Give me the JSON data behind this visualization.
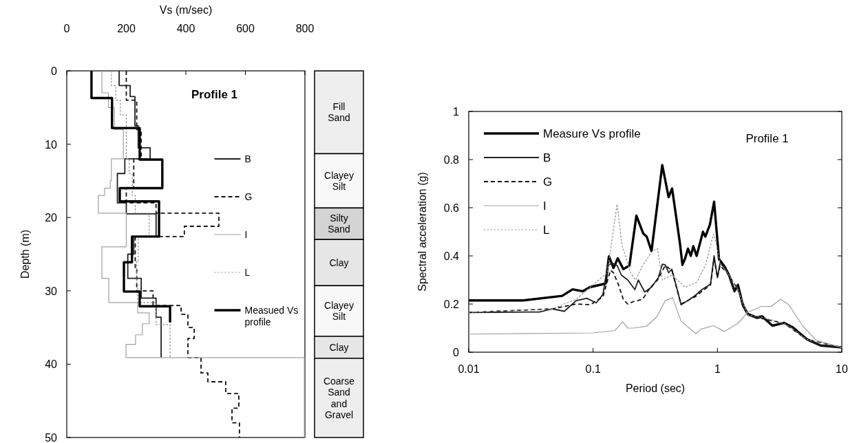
{
  "chart_data": [
    {
      "type": "line",
      "title": "Profile 1",
      "xlabel": "Vs (m/sec)",
      "ylabel": "Depth (m)",
      "xlim": [
        0,
        800
      ],
      "xticks": [
        0,
        200,
        400,
        600,
        800
      ],
      "ylim": [
        50,
        0
      ],
      "yticks": [
        0,
        10,
        20,
        30,
        40,
        50
      ],
      "legend": "right",
      "grid": false,
      "series": [
        {
          "name": "B",
          "color": "#202020",
          "line_style": "solid",
          "x": [
            176,
            176,
            213,
            213,
            229,
            229,
            240,
            240,
            280,
            280,
            195,
            195,
            170,
            170,
            200,
            200,
            300,
            300,
            225,
            225,
            205,
            205,
            250,
            250,
            300,
            300,
            317,
            317
          ],
          "values": [
            0,
            2,
            2,
            3.5,
            3.5,
            7.5,
            7.5,
            10.5,
            10.5,
            12,
            12,
            14,
            14,
            18,
            18,
            19.5,
            19.5,
            22.6,
            22.6,
            25,
            25,
            28.3,
            28.3,
            31,
            31,
            33.6,
            33.6,
            39.1
          ]
        },
        {
          "name": "G",
          "color": "#101010",
          "line_style": "dashed",
          "x": [
            200,
            200,
            235,
            235,
            250,
            250,
            225,
            225,
            200,
            200,
            300,
            300,
            511,
            511,
            395,
            395,
            230,
            230,
            235,
            235,
            290,
            290,
            384,
            384,
            407,
            407,
            428,
            428,
            407,
            407,
            451,
            451,
            474,
            474,
            534,
            534,
            578,
            578,
            555,
            555,
            580,
            580
          ],
          "values": [
            0,
            4,
            4,
            8,
            8,
            12,
            12,
            16,
            16,
            18,
            18,
            19.4,
            19.4,
            21.2,
            21.2,
            22.6,
            22.6,
            27,
            27,
            30,
            30,
            32,
            32,
            33.2,
            33.2,
            35,
            35,
            36.5,
            36.5,
            39.1,
            39.1,
            41.2,
            41.2,
            42.4,
            42.4,
            44,
            44,
            46,
            46,
            48,
            48,
            50
          ]
        },
        {
          "name": "I",
          "color": "#a0a0a0",
          "line_style": "solid",
          "x": [
            118,
            118,
            140,
            140,
            160,
            160,
            190,
            190,
            150,
            150,
            146,
            146,
            127,
            127,
            106,
            106,
            200,
            200,
            118,
            118,
            141,
            141,
            238,
            238,
            277,
            277,
            254,
            254,
            231,
            231,
            199,
            199,
            798,
            798
          ],
          "values": [
            0,
            3,
            3,
            5,
            5,
            8,
            8,
            12,
            12,
            15,
            15,
            16,
            16,
            17,
            17,
            19.4,
            19.4,
            24,
            24,
            28.3,
            28.3,
            31.6,
            31.6,
            33,
            33,
            34.5,
            34.5,
            36,
            36,
            37.3,
            37.3,
            39.1,
            39.1,
            50
          ]
        },
        {
          "name": "L",
          "color": "#909090",
          "line_style": "dotted",
          "x": [
            150,
            150,
            165,
            165,
            180,
            180,
            200,
            200,
            210,
            210,
            220,
            220,
            230,
            230,
            277,
            277,
            240,
            240,
            235,
            235,
            238,
            238,
            300,
            300,
            347,
            347
          ],
          "values": [
            0,
            2,
            2,
            4,
            4,
            6,
            6,
            12,
            12,
            14,
            14,
            17,
            17,
            19.4,
            19.4,
            22.6,
            22.6,
            26,
            26,
            29,
            29,
            31.6,
            31.6,
            34.6,
            34.6,
            39.1
          ]
        },
        {
          "name": "Measued Vs profile",
          "color": "#000000",
          "line_style": "solid",
          "x": [
            83,
            83,
            152,
            152,
            245,
            245,
            321,
            321,
            178,
            178,
            310,
            310,
            219,
            219,
            192,
            192,
            245,
            245,
            347,
            347
          ],
          "values": [
            0,
            3.7,
            3.7,
            7.8,
            7.8,
            12.1,
            12.1,
            16,
            16,
            17.8,
            17.8,
            22.6,
            22.6,
            26.1,
            26.1,
            30.1,
            30.1,
            32.1,
            32.1,
            34.3
          ]
        }
      ]
    },
    {
      "type": "bar",
      "stacked": true,
      "categories": [
        null
      ],
      "ylim": [
        50,
        0
      ],
      "series": [
        {
          "name": "Fill Sand",
          "color": "#eeeeee",
          "values": [
            11.3
          ]
        },
        {
          "name": "Clayey Silt",
          "color": "#f8f8f8",
          "values": [
            7.4
          ]
        },
        {
          "name": "Silty Sand",
          "color": "#d4d4d4",
          "values": [
            4.3
          ]
        },
        {
          "name": "Clay",
          "color": "#e6e6e6",
          "values": [
            6.3
          ]
        },
        {
          "name": "Clayey Silt",
          "color": "#f8f8f8",
          "values": [
            6.9
          ]
        },
        {
          "name": "Clay",
          "color": "#e6e6e6",
          "values": [
            3.0
          ]
        },
        {
          "name": "Coarse Sand and Gravel",
          "color": "#eeeeee",
          "values": [
            10.8
          ]
        }
      ]
    },
    {
      "type": "line",
      "title": "Profile 1",
      "xlabel": "Period (sec)",
      "ylabel": "Spectral acceleration (g)",
      "log": "x",
      "xlim": [
        0.01,
        10
      ],
      "xticks": [
        0.01,
        0.1,
        1,
        10
      ],
      "ylim": [
        0,
        1
      ],
      "yticks": [
        0,
        0.2,
        0.4,
        0.6,
        0.8,
        1
      ],
      "legend": "top left",
      "grid": false,
      "series": [
        {
          "name": "Measure Vs profile",
          "color": "#000000",
          "line_style": "solid",
          "x": [
            0.01,
            0.0273,
            0.0564,
            0.0684,
            0.0825,
            0.094,
            0.126,
            0.134,
            0.146,
            0.158,
            0.175,
            0.196,
            0.223,
            0.253,
            0.27,
            0.295,
            0.36,
            0.405,
            0.432,
            0.5,
            0.523,
            0.55,
            0.58,
            0.61,
            0.64,
            0.68,
            0.765,
            0.8,
            0.87,
            0.94,
            1.03,
            1.14,
            1.24,
            1.37,
            1.46,
            1.6,
            1.75,
            2.07,
            2.29,
            2.77,
            3.43,
            4.05,
            5.23,
            6.74,
            10
          ],
          "values": [
            0.215,
            0.215,
            0.234,
            0.261,
            0.253,
            0.27,
            0.285,
            0.398,
            0.35,
            0.39,
            0.345,
            0.36,
            0.567,
            0.493,
            0.48,
            0.42,
            0.777,
            0.644,
            0.68,
            0.45,
            0.363,
            0.39,
            0.43,
            0.4,
            0.44,
            0.4,
            0.5,
            0.48,
            0.53,
            0.625,
            0.386,
            0.356,
            0.32,
            0.254,
            0.28,
            0.197,
            0.159,
            0.145,
            0.149,
            0.11,
            0.122,
            0.103,
            0.054,
            0.028,
            0.02
          ]
        },
        {
          "name": "B",
          "color": "#202020",
          "line_style": "solid",
          "x": [
            0.01,
            0.037,
            0.047,
            0.0588,
            0.073,
            0.089,
            0.106,
            0.12,
            0.131,
            0.143,
            0.156,
            0.169,
            0.19,
            0.217,
            0.231,
            0.26,
            0.295,
            0.335,
            0.36,
            0.38,
            0.405,
            0.43,
            0.51,
            0.58,
            0.66,
            0.75,
            0.88,
            0.94,
            1.0,
            1.05,
            1.14,
            1.24,
            1.37,
            1.46,
            1.6,
            1.75,
            2.07,
            2.29,
            2.77,
            3.43,
            4.05,
            5.23,
            6.74,
            10
          ],
          "values": [
            0.165,
            0.167,
            0.18,
            0.17,
            0.214,
            0.224,
            0.205,
            0.24,
            0.36,
            0.37,
            0.36,
            0.32,
            0.3,
            0.26,
            0.3,
            0.25,
            0.27,
            0.31,
            0.365,
            0.363,
            0.33,
            0.345,
            0.197,
            0.215,
            0.235,
            0.26,
            0.283,
            0.4,
            0.31,
            0.37,
            0.35,
            0.32,
            0.25,
            0.27,
            0.19,
            0.155,
            0.14,
            0.145,
            0.108,
            0.12,
            0.1,
            0.052,
            0.027,
            0.02
          ]
        },
        {
          "name": "G",
          "color": "#101010",
          "line_style": "dashed",
          "x": [
            0.01,
            0.047,
            0.073,
            0.095,
            0.12,
            0.131,
            0.138,
            0.146,
            0.16,
            0.175,
            0.19,
            0.21,
            0.25,
            0.29,
            0.33,
            0.38,
            0.43,
            0.51,
            0.66,
            0.88,
            0.94,
            1.0,
            1.05,
            1.24,
            1.46,
            1.75,
            2.29,
            3.43,
            5.23,
            10
          ],
          "values": [
            0.165,
            0.18,
            0.2,
            0.197,
            0.23,
            0.3,
            0.34,
            0.33,
            0.28,
            0.22,
            0.2,
            0.21,
            0.22,
            0.27,
            0.3,
            0.36,
            0.34,
            0.2,
            0.23,
            0.28,
            0.39,
            0.31,
            0.36,
            0.32,
            0.26,
            0.155,
            0.14,
            0.12,
            0.053,
            0.02
          ]
        },
        {
          "name": "I",
          "color": "#a0a0a0",
          "line_style": "solid",
          "x": [
            0.01,
            0.1,
            0.15,
            0.173,
            0.19,
            0.21,
            0.27,
            0.326,
            0.38,
            0.437,
            0.51,
            0.67,
            0.74,
            0.93,
            1.14,
            1.46,
            1.75,
            2.25,
            2.7,
            3.22,
            3.75,
            4.84,
            6.24,
            10
          ],
          "values": [
            0.075,
            0.08,
            0.09,
            0.126,
            0.1,
            0.1,
            0.108,
            0.148,
            0.214,
            0.226,
            0.129,
            0.077,
            0.096,
            0.11,
            0.086,
            0.12,
            0.165,
            0.19,
            0.19,
            0.22,
            0.197,
            0.11,
            0.049,
            0.02
          ]
        },
        {
          "name": "L",
          "color": "#909090",
          "line_style": "dotted",
          "x": [
            0.01,
            0.047,
            0.073,
            0.1,
            0.13,
            0.145,
            0.156,
            0.17,
            0.2,
            0.22,
            0.25,
            0.3,
            0.33,
            0.36,
            0.43,
            0.55,
            0.68,
            0.8,
            0.93,
            0.98,
            1.05,
            1.24,
            1.46,
            1.75,
            2.29,
            3.43,
            5.23,
            10
          ],
          "values": [
            0.165,
            0.18,
            0.22,
            0.28,
            0.33,
            0.5,
            0.615,
            0.45,
            0.33,
            0.3,
            0.36,
            0.42,
            0.43,
            0.3,
            0.32,
            0.27,
            0.29,
            0.36,
            0.49,
            0.45,
            0.37,
            0.32,
            0.26,
            0.155,
            0.145,
            0.12,
            0.053,
            0.02
          ]
        }
      ]
    }
  ]
}
